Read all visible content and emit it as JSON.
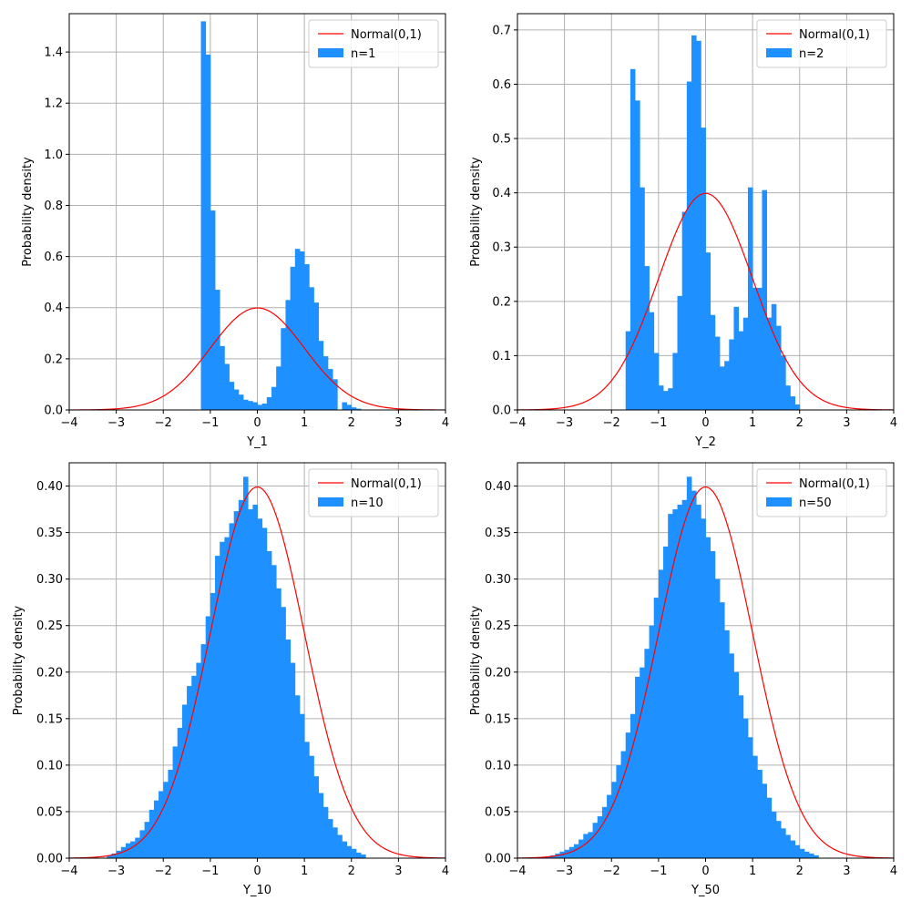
{
  "colors": {
    "bar": "#1e90ff",
    "curve": "#ff0000",
    "grid": "#b0b0b0",
    "axis": "#000000"
  },
  "chart_data": [
    {
      "type": "bar",
      "xlabel": "Y_1",
      "ylabel": "Probability density",
      "xlim": [
        -4,
        4
      ],
      "ylim": [
        0,
        1.55
      ],
      "xticks": [
        "−4",
        "−3",
        "−2",
        "−1",
        "0",
        "1",
        "2",
        "3",
        "4"
      ],
      "xtick_values": [
        -4,
        -3,
        -2,
        -1,
        0,
        1,
        2,
        3,
        4
      ],
      "yticks": [
        "0.0",
        "0.2",
        "0.4",
        "0.6",
        "0.8",
        "1.0",
        "1.2",
        "1.4"
      ],
      "ytick_values": [
        0,
        0.2,
        0.4,
        0.6,
        0.8,
        1.0,
        1.2,
        1.4
      ],
      "grid": true,
      "legend_position": "top-right",
      "legend": [
        "Normal(0,1)",
        "n=1"
      ],
      "bin_start": -1.2,
      "bin_width": 0.1,
      "densities": [
        1.52,
        1.39,
        0.78,
        0.47,
        0.25,
        0.18,
        0.11,
        0.08,
        0.06,
        0.04,
        0.035,
        0.03,
        0.02,
        0.025,
        0.05,
        0.09,
        0.17,
        0.32,
        0.43,
        0.56,
        0.63,
        0.62,
        0.57,
        0.48,
        0.42,
        0.27,
        0.21,
        0.16,
        0.12,
        0.0,
        0.03,
        0.02,
        0.01,
        0.005
      ],
      "curve": "normal pdf"
    },
    {
      "type": "bar",
      "xlabel": "Y_2",
      "ylabel": "Probability density",
      "xlim": [
        -4,
        4
      ],
      "ylim": [
        0,
        0.73
      ],
      "xticks": [
        "−4",
        "−3",
        "−2",
        "−1",
        "0",
        "1",
        "2",
        "3",
        "4"
      ],
      "xtick_values": [
        -4,
        -3,
        -2,
        -1,
        0,
        1,
        2,
        3,
        4
      ],
      "yticks": [
        "0.0",
        "0.1",
        "0.2",
        "0.3",
        "0.4",
        "0.5",
        "0.6",
        "0.7"
      ],
      "ytick_values": [
        0,
        0.1,
        0.2,
        0.3,
        0.4,
        0.5,
        0.6,
        0.7
      ],
      "grid": true,
      "legend_position": "top-right",
      "legend": [
        "Normal(0,1)",
        "n=2"
      ],
      "bin_start": -1.7,
      "bin_width": 0.1,
      "densities": [
        0.145,
        0.628,
        0.57,
        0.41,
        0.265,
        0.18,
        0.105,
        0.045,
        0.035,
        0.04,
        0.105,
        0.21,
        0.365,
        0.605,
        0.69,
        0.68,
        0.52,
        0.29,
        0.175,
        0.135,
        0.08,
        0.09,
        0.13,
        0.19,
        0.145,
        0.17,
        0.41,
        0.225,
        0.225,
        0.405,
        0.17,
        0.195,
        0.155,
        0.1,
        0.045,
        0.025,
        0.01
      ],
      "curve": "normal pdf"
    },
    {
      "type": "bar",
      "xlabel": "Y_10",
      "ylabel": "Probability density",
      "xlim": [
        -4,
        4
      ],
      "ylim": [
        0,
        0.425
      ],
      "xticks": [
        "−4",
        "−3",
        "−2",
        "−1",
        "0",
        "1",
        "2",
        "3",
        "4"
      ],
      "xtick_values": [
        -4,
        -3,
        -2,
        -1,
        0,
        1,
        2,
        3,
        4
      ],
      "yticks": [
        "0.00",
        "0.05",
        "0.10",
        "0.15",
        "0.20",
        "0.25",
        "0.30",
        "0.35",
        "0.40"
      ],
      "ytick_values": [
        0,
        0.05,
        0.1,
        0.15,
        0.2,
        0.25,
        0.3,
        0.35,
        0.4
      ],
      "grid": true,
      "legend_position": "top-right",
      "legend": [
        "Normal(0,1)",
        "n=10"
      ],
      "bin_start": -3.2,
      "bin_width": 0.1,
      "densities": [
        0.003,
        0.005,
        0.008,
        0.012,
        0.016,
        0.018,
        0.022,
        0.03,
        0.039,
        0.052,
        0.062,
        0.072,
        0.082,
        0.095,
        0.12,
        0.14,
        0.165,
        0.185,
        0.196,
        0.21,
        0.23,
        0.26,
        0.285,
        0.325,
        0.34,
        0.345,
        0.36,
        0.373,
        0.385,
        0.41,
        0.375,
        0.38,
        0.365,
        0.355,
        0.33,
        0.315,
        0.29,
        0.27,
        0.235,
        0.21,
        0.175,
        0.155,
        0.125,
        0.11,
        0.088,
        0.07,
        0.055,
        0.042,
        0.033,
        0.025,
        0.018,
        0.013,
        0.01,
        0.006,
        0.004
      ],
      "curve": "normal pdf"
    },
    {
      "type": "bar",
      "xlabel": "Y_50",
      "ylabel": "Probability density",
      "xlim": [
        -4,
        4
      ],
      "ylim": [
        0,
        0.425
      ],
      "xticks": [
        "−4",
        "−3",
        "−2",
        "−1",
        "0",
        "1",
        "2",
        "3",
        "4"
      ],
      "xtick_values": [
        -4,
        -3,
        -2,
        -1,
        0,
        1,
        2,
        3,
        4
      ],
      "yticks": [
        "0.00",
        "0.05",
        "0.10",
        "0.15",
        "0.20",
        "0.25",
        "0.30",
        "0.35",
        "0.40"
      ],
      "ytick_values": [
        0,
        0.05,
        0.1,
        0.15,
        0.2,
        0.25,
        0.3,
        0.35,
        0.4
      ],
      "grid": true,
      "legend_position": "top-right",
      "legend": [
        "Normal(0,1)",
        "n=50"
      ],
      "bin_start": -3.4,
      "bin_width": 0.1,
      "densities": [
        0.002,
        0.003,
        0.005,
        0.007,
        0.009,
        0.012,
        0.015,
        0.02,
        0.026,
        0.028,
        0.038,
        0.045,
        0.055,
        0.068,
        0.082,
        0.1,
        0.115,
        0.135,
        0.155,
        0.195,
        0.205,
        0.225,
        0.25,
        0.28,
        0.31,
        0.335,
        0.37,
        0.375,
        0.38,
        0.385,
        0.41,
        0.395,
        0.38,
        0.365,
        0.345,
        0.33,
        0.3,
        0.275,
        0.245,
        0.22,
        0.2,
        0.175,
        0.15,
        0.13,
        0.11,
        0.095,
        0.08,
        0.065,
        0.05,
        0.04,
        0.032,
        0.025,
        0.019,
        0.014,
        0.01,
        0.007,
        0.005,
        0.003
      ],
      "curve": "normal pdf"
    }
  ]
}
